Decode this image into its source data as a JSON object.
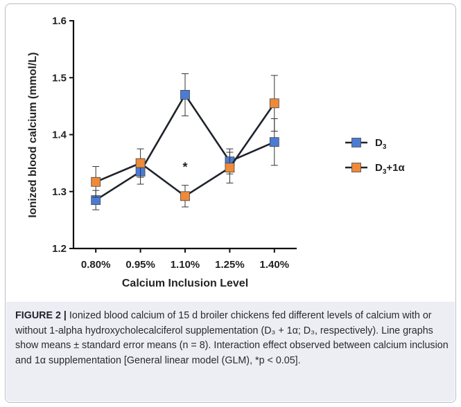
{
  "chart_data": {
    "type": "line",
    "xlabel": "Calcium Inclusion Level",
    "ylabel": "Ionized blood calcium (mmol/L)",
    "categories": [
      "0.80%",
      "0.95%",
      "1.10%",
      "1.25%",
      "1.40%"
    ],
    "ylim": [
      1.2,
      1.6
    ],
    "yticks": [
      "1.2",
      "1.3",
      "1.4",
      "1.5",
      "1.6"
    ],
    "series": [
      {
        "name_main": "D",
        "name_sub": "3",
        "name_suffix": "",
        "color": "#4a7cd6",
        "line_color": "#1f232b",
        "values": [
          1.285,
          1.335,
          1.47,
          1.353,
          1.387
        ],
        "errors": [
          0.017,
          0.022,
          0.037,
          0.022,
          0.041
        ]
      },
      {
        "name_main": "D",
        "name_sub": "3",
        "name_suffix": "+1α",
        "color": "#ee8a3a",
        "line_color": "#1f232b",
        "values": [
          1.317,
          1.35,
          1.292,
          1.342,
          1.455
        ],
        "errors": [
          0.027,
          0.025,
          0.019,
          0.027,
          0.049
        ]
      }
    ],
    "annotations": [
      {
        "category": "1.10%",
        "y": 1.348,
        "text": "*"
      }
    ],
    "legend_position": "right",
    "grid": false
  },
  "caption": {
    "label": "FIGURE 2 |",
    "text": "Ionized blood calcium of 15 d broiler chickens fed different levels of calcium with or without 1-alpha hydroxycholecalciferol supplementation (D₃ + 1α; D₃, respectively). Line graphs show means ± standard error means (n = 8). Interaction effect observed between calcium inclusion and 1α supplementation [General linear model (GLM), *p < 0.05]."
  }
}
